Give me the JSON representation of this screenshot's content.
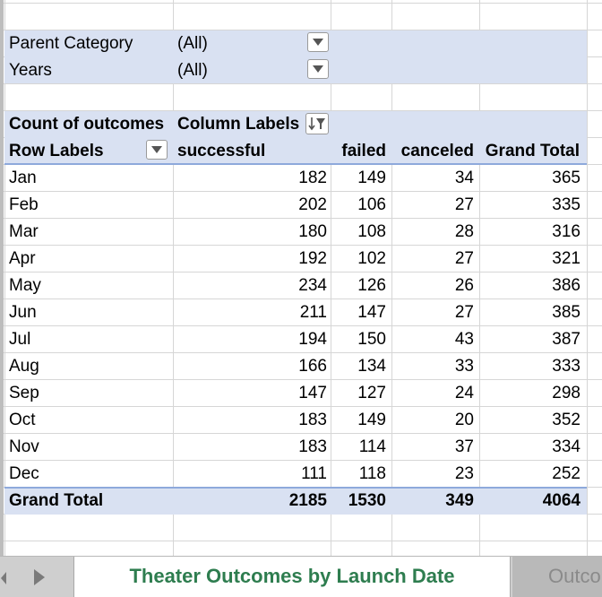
{
  "filters": [
    {
      "label": "Parent Category",
      "value": "(All)"
    },
    {
      "label": "Years",
      "value": "(All)"
    }
  ],
  "pivot": {
    "corner_label": "Count of outcomes",
    "column_labels": "Column Labels",
    "row_labels": "Row Labels",
    "columns": [
      "successful",
      "failed",
      "canceled",
      "Grand Total"
    ],
    "rows": [
      {
        "label": "Jan",
        "values": [
          "182",
          "149",
          "34",
          "365"
        ]
      },
      {
        "label": "Feb",
        "values": [
          "202",
          "106",
          "27",
          "335"
        ]
      },
      {
        "label": "Mar",
        "values": [
          "180",
          "108",
          "28",
          "316"
        ]
      },
      {
        "label": "Apr",
        "values": [
          "192",
          "102",
          "27",
          "321"
        ]
      },
      {
        "label": "May",
        "values": [
          "234",
          "126",
          "26",
          "386"
        ]
      },
      {
        "label": "Jun",
        "values": [
          "211",
          "147",
          "27",
          "385"
        ]
      },
      {
        "label": "Jul",
        "values": [
          "194",
          "150",
          "43",
          "387"
        ]
      },
      {
        "label": "Aug",
        "values": [
          "166",
          "134",
          "33",
          "333"
        ]
      },
      {
        "label": "Sep",
        "values": [
          "147",
          "127",
          "24",
          "298"
        ]
      },
      {
        "label": "Oct",
        "values": [
          "183",
          "149",
          "20",
          "352"
        ]
      },
      {
        "label": "Nov",
        "values": [
          "183",
          "114",
          "37",
          "334"
        ]
      },
      {
        "label": "Dec",
        "values": [
          "111",
          "118",
          "23",
          "252"
        ]
      }
    ],
    "grand_total": {
      "label": "Grand Total",
      "values": [
        "2185",
        "1530",
        "349",
        "4064"
      ]
    }
  },
  "tabs": {
    "active": "Theater Outcomes by Launch Date",
    "next": "Outco",
    "nav_icons": [
      "tab-scroll-left-icon",
      "tab-scroll-right-icon"
    ]
  },
  "colors": {
    "pivot_band": "#d9e1f2",
    "pivot_rule": "#8ea9db",
    "active_tab_text": "#2e7d4f"
  }
}
